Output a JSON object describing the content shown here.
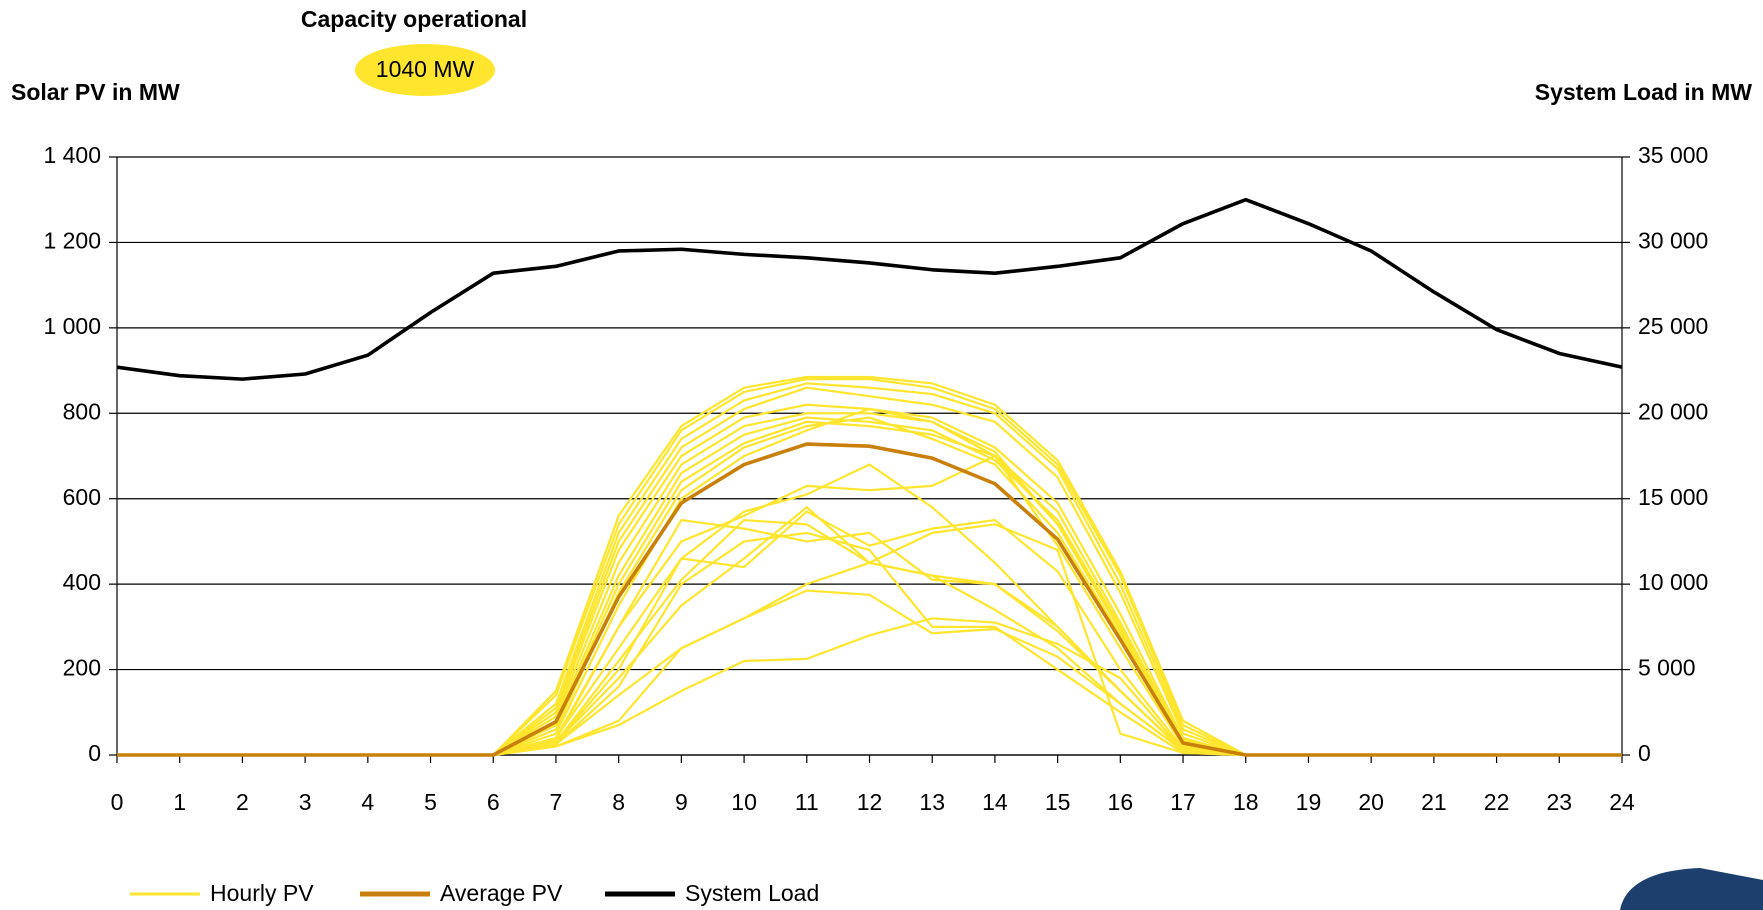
{
  "chart_data": {
    "type": "line",
    "title": "Capacity operational",
    "annotation": "1040 MW",
    "y_label": "Solar PV in MW",
    "y2_label": "System Load in MW",
    "x": [
      0,
      1,
      2,
      3,
      4,
      5,
      6,
      7,
      8,
      9,
      10,
      11,
      12,
      13,
      14,
      15,
      16,
      17,
      18,
      19,
      20,
      21,
      22,
      23,
      24
    ],
    "xlim": [
      0,
      24
    ],
    "xticks": [
      0,
      1,
      2,
      3,
      4,
      5,
      6,
      7,
      8,
      9,
      10,
      11,
      12,
      13,
      14,
      15,
      16,
      17,
      18,
      19,
      20,
      21,
      22,
      23,
      24
    ],
    "ylim": [
      0,
      1400
    ],
    "yticks": [
      0,
      200,
      400,
      600,
      800,
      {
        "value": 1000,
        "label": "1 000"
      },
      {
        "value": 1200,
        "label": "1 200"
      },
      {
        "value": 1400,
        "label": "1 400"
      }
    ],
    "y2lim": [
      0,
      35000
    ],
    "y2ticks": [
      0,
      {
        "value": 5000,
        "label": "5 000"
      },
      {
        "value": 10000,
        "label": "10 000"
      },
      {
        "value": 15000,
        "label": "15 000"
      },
      {
        "value": 20000,
        "label": "20 000"
      },
      {
        "value": 25000,
        "label": "25 000"
      },
      {
        "value": 30000,
        "label": "30 000"
      },
      {
        "value": 35000,
        "label": "35 000"
      }
    ],
    "grid": true,
    "legend": "bottom",
    "series": [
      {
        "name": "Hourly PV",
        "color": "#ffe52e",
        "values": [
          [
            0,
            0,
            0,
            0,
            0,
            0,
            0,
            150,
            560,
            770,
            860,
            885,
            885,
            870,
            820,
            690,
            430,
            80,
            0,
            0,
            0,
            0,
            0,
            0,
            0
          ],
          [
            0,
            0,
            0,
            0,
            0,
            0,
            0,
            140,
            540,
            760,
            850,
            880,
            880,
            860,
            810,
            680,
            420,
            70,
            0,
            0,
            0,
            0,
            0,
            0,
            0
          ],
          [
            0,
            0,
            0,
            0,
            0,
            0,
            0,
            120,
            520,
            740,
            830,
            870,
            860,
            845,
            800,
            670,
            400,
            60,
            0,
            0,
            0,
            0,
            0,
            0,
            0
          ],
          [
            0,
            0,
            0,
            0,
            0,
            0,
            0,
            110,
            500,
            720,
            810,
            860,
            840,
            820,
            780,
            650,
            380,
            50,
            0,
            0,
            0,
            0,
            0,
            0,
            0
          ],
          [
            0,
            0,
            0,
            0,
            0,
            0,
            0,
            100,
            480,
            700,
            790,
            820,
            810,
            790,
            720,
            590,
            330,
            40,
            0,
            0,
            0,
            0,
            0,
            0,
            0
          ],
          [
            0,
            0,
            0,
            0,
            0,
            0,
            0,
            90,
            450,
            680,
            770,
            800,
            800,
            780,
            700,
            570,
            310,
            35,
            0,
            0,
            0,
            0,
            0,
            0,
            0
          ],
          [
            0,
            0,
            0,
            0,
            0,
            0,
            0,
            80,
            420,
            660,
            750,
            790,
            780,
            760,
            690,
            550,
            300,
            30,
            0,
            0,
            0,
            0,
            0,
            0,
            0
          ],
          [
            0,
            0,
            0,
            0,
            0,
            0,
            0,
            70,
            400,
            640,
            730,
            780,
            770,
            750,
            700,
            540,
            290,
            30,
            0,
            0,
            0,
            0,
            0,
            0,
            0
          ],
          [
            0,
            0,
            0,
            0,
            0,
            0,
            0,
            60,
            380,
            620,
            720,
            770,
            790,
            740,
            680,
            520,
            280,
            25,
            0,
            0,
            0,
            0,
            0,
            0,
            0
          ],
          [
            0,
            0,
            0,
            0,
            0,
            0,
            0,
            50,
            350,
            600,
            700,
            760,
            810,
            780,
            710,
            540,
            300,
            25,
            0,
            0,
            0,
            0,
            0,
            0,
            0
          ],
          [
            0,
            0,
            0,
            0,
            0,
            0,
            0,
            40,
            300,
            500,
            560,
            630,
            620,
            630,
            700,
            490,
            250,
            20,
            0,
            0,
            0,
            0,
            0,
            0,
            0
          ],
          [
            0,
            0,
            0,
            0,
            0,
            0,
            0,
            40,
            250,
            460,
            440,
            570,
            490,
            530,
            550,
            430,
            200,
            15,
            0,
            0,
            0,
            0,
            0,
            0,
            0
          ],
          [
            0,
            0,
            0,
            0,
            0,
            0,
            0,
            30,
            220,
            410,
            550,
            540,
            450,
            420,
            400,
            300,
            150,
            10,
            0,
            0,
            0,
            0,
            0,
            0,
            0
          ],
          [
            0,
            0,
            0,
            0,
            0,
            0,
            0,
            30,
            180,
            350,
            460,
            580,
            450,
            420,
            340,
            250,
            120,
            10,
            0,
            0,
            0,
            0,
            0,
            0,
            0
          ],
          [
            0,
            0,
            0,
            0,
            0,
            0,
            0,
            25,
            160,
            400,
            500,
            520,
            480,
            300,
            300,
            200,
            100,
            5,
            0,
            0,
            0,
            0,
            0,
            0,
            0
          ],
          [
            0,
            0,
            0,
            0,
            0,
            0,
            0,
            20,
            80,
            250,
            320,
            400,
            450,
            520,
            540,
            480,
            50,
            5,
            0,
            0,
            0,
            0,
            0,
            0,
            0
          ],
          [
            0,
            0,
            0,
            0,
            0,
            0,
            0,
            20,
            70,
            150,
            220,
            225,
            280,
            320,
            310,
            260,
            180,
            10,
            0,
            0,
            0,
            0,
            0,
            0,
            0
          ],
          [
            0,
            0,
            0,
            0,
            0,
            0,
            0,
            25,
            140,
            250,
            320,
            385,
            375,
            285,
            295,
            230,
            120,
            10,
            0,
            0,
            0,
            0,
            0,
            0,
            0
          ],
          [
            0,
            0,
            0,
            0,
            0,
            0,
            0,
            30,
            200,
            460,
            570,
            610,
            680,
            580,
            450,
            300,
            150,
            10,
            0,
            0,
            0,
            0,
            0,
            0,
            0
          ],
          [
            0,
            0,
            0,
            0,
            0,
            0,
            0,
            35,
            300,
            550,
            530,
            500,
            520,
            410,
            400,
            290,
            150,
            10,
            0,
            0,
            0,
            0,
            0,
            0,
            0
          ]
        ]
      },
      {
        "name": "Average PV",
        "color": "#c8800a",
        "values": [
          0,
          0,
          0,
          0,
          0,
          0,
          0,
          78,
          370,
          590,
          680,
          728,
          723,
          695,
          635,
          505,
          270,
          28,
          0,
          0,
          0,
          0,
          0,
          0,
          0
        ]
      },
      {
        "name": "System Load",
        "color": "#000000",
        "axis": "y2",
        "values": [
          22700,
          22200,
          22000,
          22300,
          23400,
          25900,
          28200,
          28600,
          29500,
          29600,
          29300,
          29100,
          28800,
          28400,
          28200,
          28600,
          29100,
          31100,
          32500,
          31100,
          29500,
          27100,
          24900,
          23500,
          22700
        ]
      }
    ]
  }
}
